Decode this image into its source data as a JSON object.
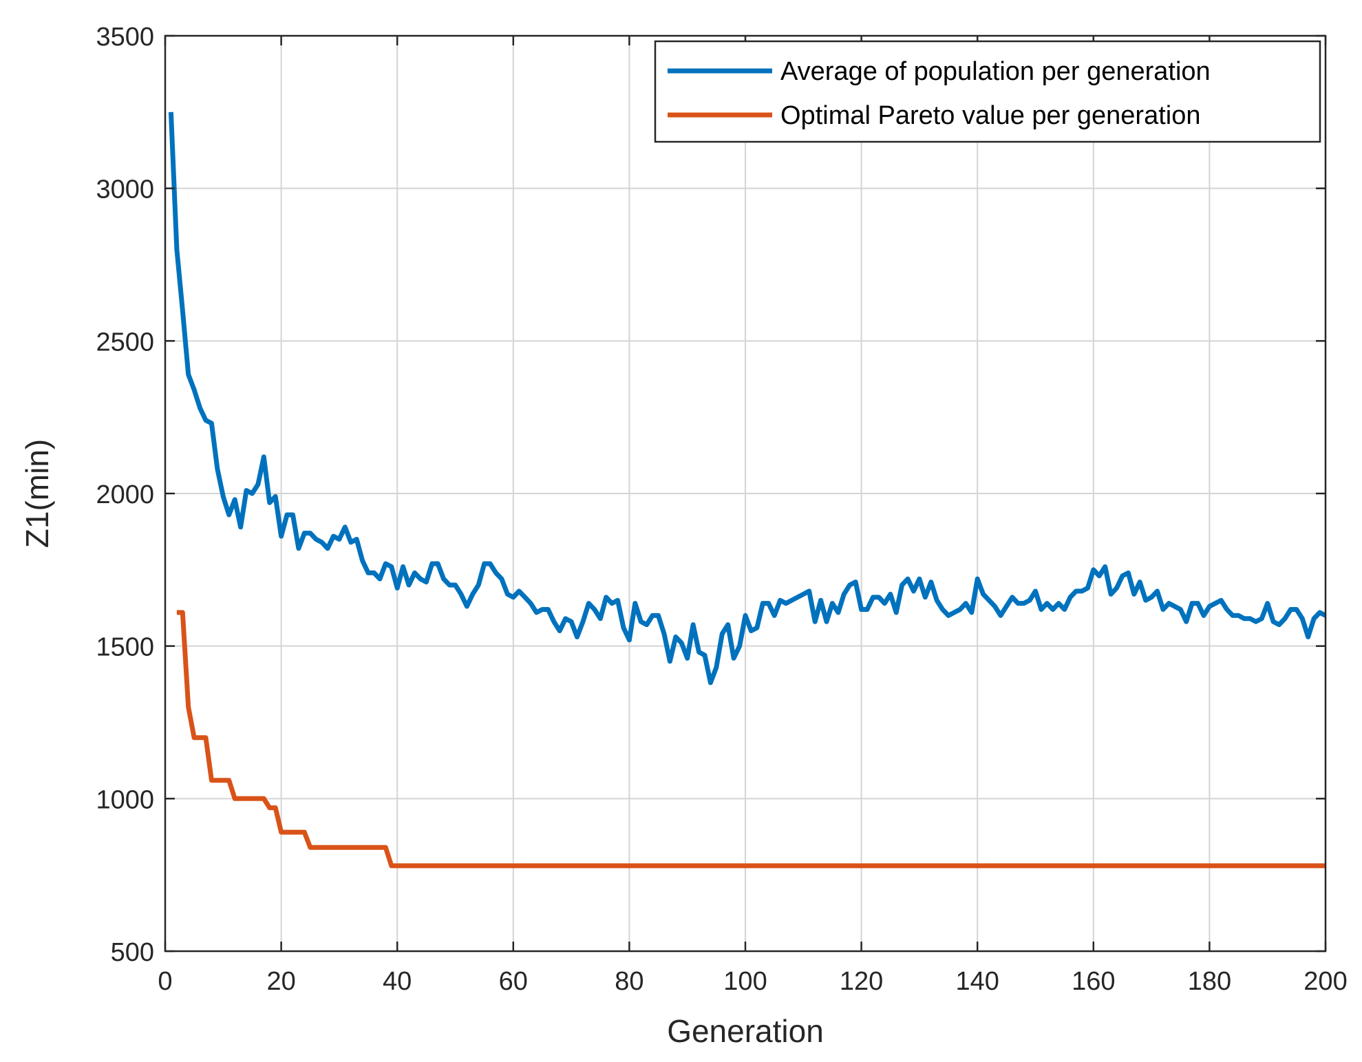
{
  "chart_data": {
    "type": "line",
    "xlabel": "Generation",
    "ylabel": "Z1(min)",
    "xlim": [
      0,
      200
    ],
    "ylim": [
      500,
      3500
    ],
    "xticks": [
      0,
      20,
      40,
      60,
      80,
      100,
      120,
      140,
      160,
      180,
      200
    ],
    "yticks": [
      500,
      1000,
      1500,
      2000,
      2500,
      3000,
      3500
    ],
    "grid": true,
    "legend_position": "top-right",
    "series": [
      {
        "name": "Average of population per generation",
        "color": "#0072BD",
        "x": [
          1,
          2,
          3,
          4,
          5,
          6,
          7,
          8,
          9,
          10,
          11,
          12,
          13,
          14,
          15,
          16,
          17,
          18,
          19,
          20,
          21,
          22,
          23,
          24,
          25,
          26,
          27,
          28,
          29,
          30,
          31,
          32,
          33,
          34,
          35,
          36,
          37,
          38,
          39,
          40,
          41,
          42,
          43,
          44,
          45,
          46,
          47,
          48,
          49,
          50,
          51,
          52,
          53,
          54,
          55,
          56,
          57,
          58,
          59,
          60,
          61,
          62,
          63,
          64,
          65,
          66,
          67,
          68,
          69,
          70,
          71,
          72,
          73,
          74,
          75,
          76,
          77,
          78,
          79,
          80,
          81,
          82,
          83,
          84,
          85,
          86,
          87,
          88,
          89,
          90,
          91,
          92,
          93,
          94,
          95,
          96,
          97,
          98,
          99,
          100,
          101,
          102,
          103,
          104,
          105,
          106,
          107,
          108,
          109,
          110,
          111,
          112,
          113,
          114,
          115,
          116,
          117,
          118,
          119,
          120,
          121,
          122,
          123,
          124,
          125,
          126,
          127,
          128,
          129,
          130,
          131,
          132,
          133,
          134,
          135,
          136,
          137,
          138,
          139,
          140,
          141,
          142,
          143,
          144,
          145,
          146,
          147,
          148,
          149,
          150,
          151,
          152,
          153,
          154,
          155,
          156,
          157,
          158,
          159,
          160,
          161,
          162,
          163,
          164,
          165,
          166,
          167,
          168,
          169,
          170,
          171,
          172,
          173,
          174,
          175,
          176,
          177,
          178,
          179,
          180,
          181,
          182,
          183,
          184,
          185,
          186,
          187,
          188,
          189,
          190,
          191,
          192,
          193,
          194,
          195,
          196,
          197,
          198,
          199,
          200
        ],
        "y": [
          3250,
          2800,
          2600,
          2390,
          2340,
          2280,
          2240,
          2230,
          2080,
          1990,
          1930,
          1980,
          1890,
          2010,
          2000,
          2030,
          2120,
          1970,
          1990,
          1860,
          1930,
          1930,
          1820,
          1870,
          1870,
          1850,
          1840,
          1820,
          1860,
          1850,
          1890,
          1840,
          1850,
          1780,
          1740,
          1740,
          1720,
          1770,
          1760,
          1690,
          1760,
          1700,
          1740,
          1720,
          1710,
          1770,
          1770,
          1720,
          1700,
          1700,
          1670,
          1630,
          1670,
          1700,
          1770,
          1770,
          1740,
          1720,
          1670,
          1660,
          1680,
          1660,
          1640,
          1610,
          1620,
          1620,
          1580,
          1550,
          1590,
          1580,
          1530,
          1580,
          1640,
          1620,
          1590,
          1660,
          1640,
          1650,
          1560,
          1520,
          1640,
          1580,
          1570,
          1600,
          1600,
          1540,
          1450,
          1530,
          1510,
          1460,
          1570,
          1480,
          1470,
          1380,
          1430,
          1540,
          1570,
          1460,
          1500,
          1600,
          1550,
          1560,
          1640,
          1640,
          1600,
          1650,
          1640,
          1650,
          1660,
          1670,
          1680,
          1580,
          1650,
          1580,
          1640,
          1610,
          1670,
          1700,
          1710,
          1620,
          1620,
          1660,
          1660,
          1640,
          1670,
          1610,
          1700,
          1720,
          1680,
          1720,
          1660,
          1710,
          1650,
          1620,
          1600,
          1610,
          1620,
          1640,
          1610,
          1720,
          1670,
          1650,
          1630,
          1600,
          1630,
          1660,
          1640,
          1640,
          1650,
          1680,
          1620,
          1640,
          1620,
          1640,
          1620,
          1660,
          1680,
          1680,
          1690,
          1750,
          1730,
          1760,
          1670,
          1690,
          1730,
          1740,
          1670,
          1710,
          1650,
          1660,
          1680,
          1620,
          1640,
          1630,
          1620,
          1580,
          1640,
          1640,
          1600,
          1630,
          1640,
          1650,
          1620,
          1600,
          1600,
          1590,
          1590,
          1580,
          1590,
          1640,
          1580,
          1570,
          1590,
          1620,
          1620,
          1590,
          1530,
          1590,
          1610,
          1600
        ]
      },
      {
        "name": "Optimal Pareto value per generation",
        "color": "#D95319",
        "x": [
          2,
          3,
          4,
          5,
          6,
          7,
          8,
          9,
          10,
          11,
          12,
          13,
          14,
          15,
          16,
          17,
          18,
          19,
          20,
          21,
          22,
          23,
          24,
          25,
          26,
          27,
          28,
          29,
          30,
          31,
          32,
          33,
          34,
          35,
          36,
          37,
          38,
          39,
          40,
          60,
          80,
          100,
          120,
          140,
          160,
          180,
          200
        ],
        "y": [
          1610,
          1610,
          1300,
          1200,
          1200,
          1200,
          1060,
          1060,
          1060,
          1060,
          1000,
          1000,
          1000,
          1000,
          1000,
          1000,
          970,
          970,
          890,
          890,
          890,
          890,
          890,
          840,
          840,
          840,
          840,
          840,
          840,
          840,
          840,
          840,
          840,
          840,
          840,
          840,
          840,
          780,
          780,
          780,
          780,
          780,
          780,
          780,
          780,
          780,
          780
        ]
      }
    ]
  }
}
